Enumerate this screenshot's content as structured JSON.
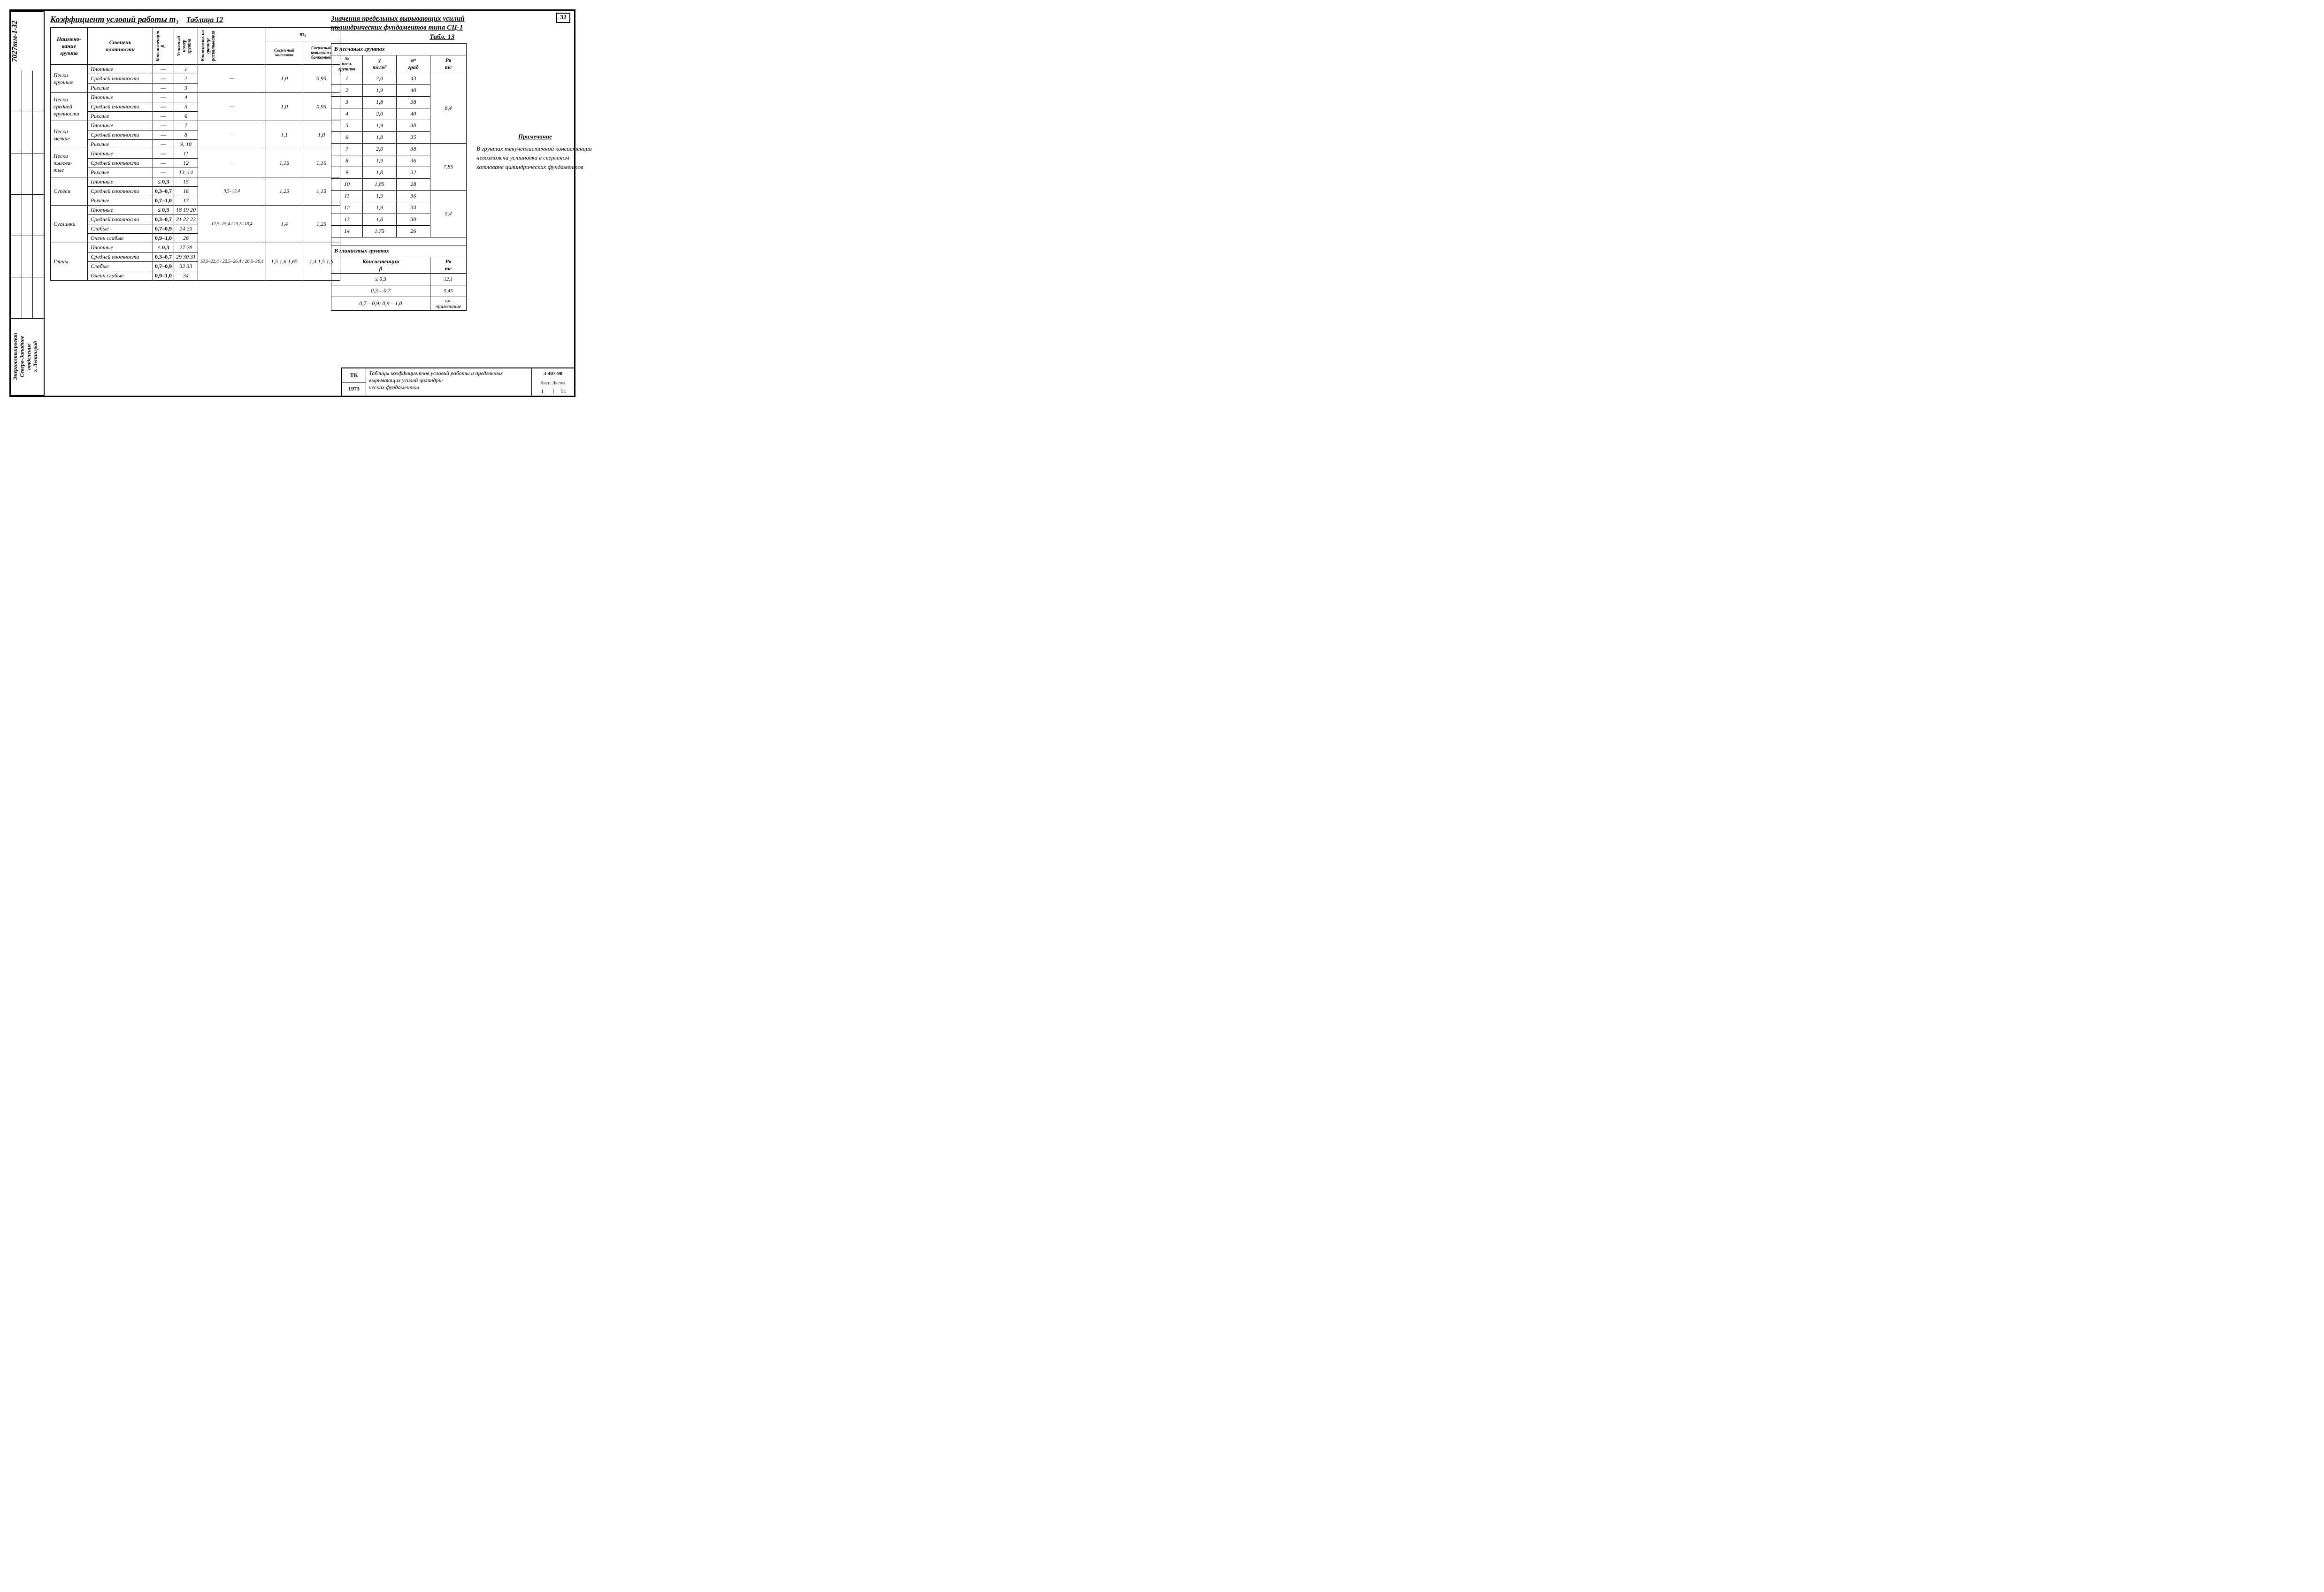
{
  "doc_code": "7027тм-I-32",
  "org": "Энергосетьпроект\nСеверо-Западное\nотделение\nг. Ленинград",
  "page_number": "32",
  "table12": {
    "title": "Коэффициент условий работы m₃",
    "label": "Таблица 12",
    "head": {
      "c1": "Наимено-\nвание\nгрунта",
      "c2": "Степень\nплотности",
      "c3": "Консистенция\nβ",
      "c4": "Условный\nномер\nгрунта",
      "c5": "Влажность на\nгранице\nраскатывания",
      "m3": "m₃",
      "m3a": "Сверленый\nкотлован",
      "m3b": "Сверленый\nкотлован с\nбанкеткой"
    },
    "groups": [
      {
        "name": "Пески\nкрупные",
        "rows": [
          {
            "dens": "Плотные",
            "beta": "—",
            "num": "1"
          },
          {
            "dens": "Средней плотности",
            "beta": "—",
            "num": "2"
          },
          {
            "dens": "Рыхлые",
            "beta": "—",
            "num": "3"
          }
        ],
        "w": "—",
        "m3a": "1,0",
        "m3b": "0,95"
      },
      {
        "name": "Пески\nсредней\nкрупности",
        "rows": [
          {
            "dens": "Плотные",
            "beta": "—",
            "num": "4"
          },
          {
            "dens": "Средней плотности",
            "beta": "—",
            "num": "5"
          },
          {
            "dens": "Рыхлые",
            "beta": "—",
            "num": "6"
          }
        ],
        "w": "—",
        "m3a": "1,0",
        "m3b": "0,95"
      },
      {
        "name": "Пески\nмелкие",
        "rows": [
          {
            "dens": "Плотные",
            "beta": "—",
            "num": "7"
          },
          {
            "dens": "Средней плотности",
            "beta": "—",
            "num": "8"
          },
          {
            "dens": "Рыхлые",
            "beta": "—",
            "num": "9, 10"
          }
        ],
        "w": "—",
        "m3a": "1,1",
        "m3b": "1,0"
      },
      {
        "name": "Пески\nпылева-\nтые",
        "rows": [
          {
            "dens": "Плотные",
            "beta": "—",
            "num": "11"
          },
          {
            "dens": "Средней плотности",
            "beta": "—",
            "num": "12"
          },
          {
            "dens": "Рыхлые",
            "beta": "—",
            "num": "13, 14"
          }
        ],
        "w": "—",
        "m3a": "1,15",
        "m3b": "1,10"
      },
      {
        "name": "Супеси",
        "rows": [
          {
            "dens": "Плотные",
            "beta": "≤ 0,3",
            "num": "15"
          },
          {
            "dens": "Средней плотности",
            "beta": "0,3–0,7",
            "num": "16"
          },
          {
            "dens": "Рыхлые",
            "beta": "0,7–1,0",
            "num": "17"
          }
        ],
        "w": "9,5–12,4",
        "m3a": "1,25",
        "m3b": "1,15"
      },
      {
        "name": "Суглинки",
        "rows": [
          {
            "dens": "Плотные",
            "beta": "≤ 0,3",
            "num": "18 19 20"
          },
          {
            "dens": "Средней плотности",
            "beta": "0,3–0,7",
            "num": "21 22 23"
          },
          {
            "dens": "Слабые",
            "beta": "0,7–0,9",
            "num": "24 25"
          },
          {
            "dens": "Очень слабые",
            "beta": "0,9–1,0",
            "num": "26"
          }
        ],
        "w": "12,5–15,4 / 15,5–18,4",
        "m3a": "1,4",
        "m3b": "1,25"
      },
      {
        "name": "Глины",
        "rows": [
          {
            "dens": "Плотные",
            "beta": "≤ 0,3",
            "num": "27 28"
          },
          {
            "dens": "Средней плотности",
            "beta": "0,3–0,7",
            "num": "29 30 31"
          },
          {
            "dens": "Слабые",
            "beta": "0,7–0,9",
            "num": "32 33"
          },
          {
            "dens": "Очень слабые",
            "beta": "0,9–1,0",
            "num": "34"
          }
        ],
        "w": "18,5–22,4 / 22,5–26,4 / 26,5–30,4",
        "m3a": "1,5 1,6 1,65",
        "m3b": "1,4 1,5 1,6"
      }
    ]
  },
  "table13": {
    "title": "Значения предельных вырывающих усилий\nцилиндрических фундаментов типа СЦ-1",
    "label": "Табл. 13",
    "sandy_header": "В песчаных грунтах",
    "cols": {
      "n": "№\nпесч.\nгрунтов",
      "g": "γ\nтс/м³",
      "phi": "φⁿ\nград",
      "p": "Pв\nтс"
    },
    "sandy_rows": [
      {
        "n": "1",
        "g": "2,0",
        "phi": "43"
      },
      {
        "n": "2",
        "g": "1,9",
        "phi": "40"
      },
      {
        "n": "3",
        "g": "1,8",
        "phi": "38"
      },
      {
        "n": "4",
        "g": "2,0",
        "phi": "40"
      },
      {
        "n": "5",
        "g": "1,9",
        "phi": "38"
      },
      {
        "n": "6",
        "g": "1,8",
        "phi": "35"
      },
      {
        "n": "7",
        "g": "2,0",
        "phi": "38"
      },
      {
        "n": "8",
        "g": "1,9",
        "phi": "36"
      },
      {
        "n": "9",
        "g": "1,8",
        "phi": "32"
      },
      {
        "n": "10",
        "g": "1,85",
        "phi": "28"
      },
      {
        "n": "11",
        "g": "1,9",
        "phi": "36"
      },
      {
        "n": "12",
        "g": "1,9",
        "phi": "34"
      },
      {
        "n": "13",
        "g": "1,8",
        "phi": "30"
      },
      {
        "n": "14",
        "g": "1,75",
        "phi": "26"
      }
    ],
    "p_groups": [
      "8,4",
      "7,85",
      "5,4"
    ],
    "clay_header": "В глинистых грунтах",
    "clay_cols": {
      "b": "Консистенция\nβ",
      "p": "Pв\nтс"
    },
    "clay_rows": [
      {
        "b": "≤ 0,3",
        "p": "12,1"
      },
      {
        "b": "0,3 – 0,7",
        "p": "5,45"
      },
      {
        "b": "0,7 – 0,9;  0,9 – 1,0",
        "p": "см.\nпримечание"
      }
    ]
  },
  "note": {
    "title": "Примечание",
    "body": "В грунтах текучепластичной консистенции невозможна установка в сверленом котловане цилиндрических фундаментов"
  },
  "stamp": {
    "tk": "ТК",
    "year": "1973",
    "desc": "Таблицы коэффициентов условий работы и предельных вырывающих усилий цилиндри-\nческих фундаментов",
    "code": "3-407-98",
    "sheet_label": "Лист | Листов",
    "sheet": "1",
    "sheets": "51"
  }
}
